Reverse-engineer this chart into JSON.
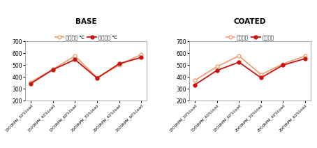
{
  "base_title": "BASE",
  "coated_title": "COATED",
  "categories": [
    "1500RPM_30%Load",
    "1500RPM_40%Load",
    "1500RPM_60%Load",
    "2000RPM_30%Load",
    "2000RPM_40%Load",
    "2000RPM_60%Load"
  ],
  "base_yeonso": [
    357,
    465,
    578,
    393,
    500,
    590
  ],
  "base_baegi": [
    345,
    462,
    547,
    390,
    512,
    565
  ],
  "coated_yeonso": [
    370,
    487,
    578,
    420,
    510,
    578
  ],
  "coated_baegi": [
    333,
    455,
    525,
    393,
    500,
    555
  ],
  "ylim": [
    200,
    700
  ],
  "yticks": [
    200,
    300,
    400,
    500,
    600,
    700
  ],
  "legend_yeonso_base": "연소온도 ℃",
  "legend_baegi_base": "배기온도 ℃",
  "legend_yeonso_coated": "연소온도",
  "legend_baegi_coated": "배기온도",
  "line_yeonso_color": "#f0a070",
  "line_baegi_color": "#cc1111",
  "bg_color": "#ffffff"
}
